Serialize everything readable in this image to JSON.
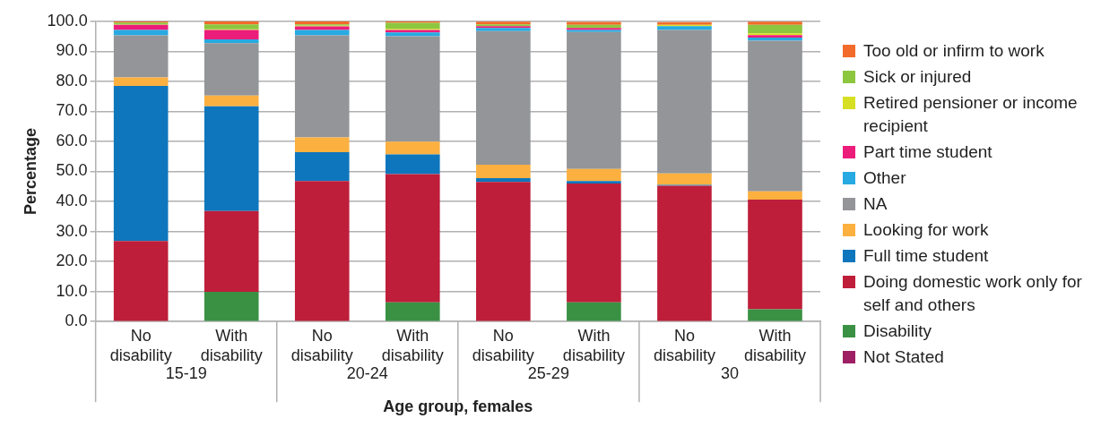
{
  "chart_data": {
    "type": "bar",
    "stacked": true,
    "xlabel": "Age group, females",
    "ylabel": "Percentage",
    "categories": [
      "No disability",
      "With disability",
      "No disability",
      "With disability",
      "No disability",
      "With disability",
      "No disability",
      "With disability"
    ],
    "annotations": [
      "15-19",
      "20-24",
      "25-29",
      "30"
    ],
    "ylim": [
      0,
      100
    ],
    "yticks": [
      {
        "value": 0,
        "label": "0.0"
      },
      {
        "value": 10,
        "label": "10.0"
      },
      {
        "value": 20,
        "label": "20.0"
      },
      {
        "value": 30,
        "label": "30.0"
      },
      {
        "value": 40,
        "label": "40.0"
      },
      {
        "value": 50,
        "label": "50.0"
      },
      {
        "value": 60,
        "label": "60.0"
      },
      {
        "value": 70,
        "label": "70.0"
      },
      {
        "value": 80,
        "label": "80.0"
      },
      {
        "value": 90,
        "label": "90.0"
      },
      {
        "value": 100,
        "label": "100.0"
      }
    ],
    "grid": "y",
    "legend": "right",
    "series": [
      {
        "name": "Not Stated",
        "color": "#9e1f63",
        "values": [
          0,
          0,
          0,
          0,
          0,
          0,
          0,
          0
        ]
      },
      {
        "name": "Disability",
        "color": "#3a9144",
        "values": [
          0,
          9.9,
          0,
          6.4,
          0,
          6.4,
          0,
          4.1
        ]
      },
      {
        "name": "Doing domestic work only for self and others",
        "color": "#be1e3a",
        "values": [
          26.8,
          26.9,
          46.8,
          42.7,
          46.5,
          39.6,
          45.2,
          36.5
        ]
      },
      {
        "name": "Full time student",
        "color": "#0e76bc",
        "values": [
          51.7,
          34.9,
          9.6,
          6.6,
          1.3,
          0.8,
          0.3,
          null
        ]
      },
      {
        "name": "Looking for work",
        "color": "#fbb040",
        "values": [
          2.8,
          3.6,
          4.9,
          4.2,
          4.4,
          4.0,
          3.8,
          2.8
        ]
      },
      {
        "name": "NA",
        "color": "#939598",
        "values": [
          14.0,
          17.4,
          34.0,
          35.1,
          44.5,
          45.6,
          47.8,
          50.1
        ]
      },
      {
        "name": "Other",
        "color": "#27aae1",
        "values": [
          1.8,
          1.3,
          1.8,
          1.3,
          1.1,
          0.7,
          1.3,
          1.1
        ]
      },
      {
        "name": "Part time student",
        "color": "#ec1c7a",
        "values": [
          1.7,
          3.1,
          1.2,
          0.8,
          0.6,
          0.7,
          null,
          0.8
        ]
      },
      {
        "name": "Retired pensioner or income recipient",
        "color": "#d7df23",
        "values": [
          0.1,
          0.2,
          0.2,
          0.4,
          null,
          null,
          0.4,
          0.6
        ]
      },
      {
        "name": "Sick or injured",
        "color": "#8dc63f",
        "values": [
          0.7,
          1.7,
          0.5,
          2.0,
          0.6,
          1.0,
          null,
          2.8
        ]
      },
      {
        "name": "Too old or infirm to work",
        "color": "#f26b2a",
        "values": [
          0.4,
          1.0,
          1.0,
          0.5,
          0.9,
          1.0,
          0.9,
          1.1
        ]
      }
    ]
  }
}
